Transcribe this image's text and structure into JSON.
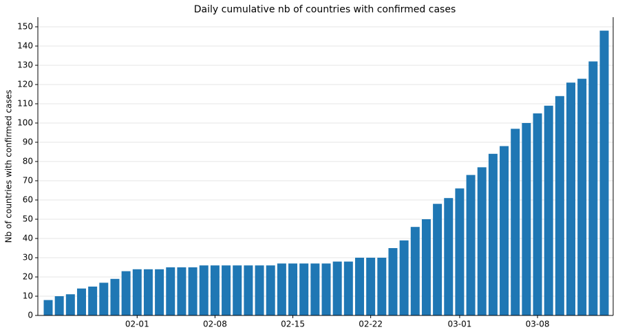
{
  "chart_data": {
    "type": "bar",
    "title": "Daily cumulative nb of countries with confirmed cases",
    "ylabel": "Nb of countries with confirmed cases",
    "categories": [
      null,
      null,
      null,
      null,
      null,
      null,
      null,
      null,
      "02-01",
      null,
      null,
      null,
      null,
      null,
      null,
      "02-08",
      null,
      null,
      null,
      null,
      null,
      null,
      "02-15",
      null,
      null,
      null,
      null,
      null,
      null,
      "02-22",
      null,
      null,
      null,
      null,
      null,
      null,
      null,
      "03-01",
      null,
      null,
      null,
      null,
      null,
      null,
      "03-08",
      null,
      null,
      null,
      null,
      null,
      null
    ],
    "values": [
      8,
      10,
      11,
      14,
      15,
      17,
      19,
      23,
      24,
      24,
      24,
      25,
      25,
      25,
      26,
      26,
      26,
      26,
      26,
      26,
      26,
      27,
      27,
      27,
      27,
      27,
      28,
      28,
      30,
      30,
      30,
      35,
      39,
      46,
      50,
      58,
      61,
      66,
      73,
      77,
      84,
      88,
      97,
      100,
      105,
      109,
      114,
      121,
      123,
      132,
      148
    ],
    "color": "#1f77b4",
    "ylim": [
      0,
      155
    ],
    "yticks": [
      0,
      10,
      20,
      30,
      40,
      50,
      60,
      70,
      80,
      90,
      100,
      110,
      120,
      130,
      140,
      150
    ],
    "grid": true
  }
}
